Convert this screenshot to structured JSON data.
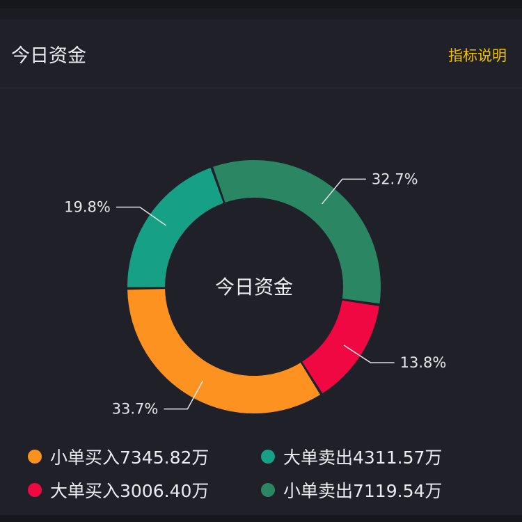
{
  "header": {
    "title": "今日资金",
    "link_label": "指标说明"
  },
  "chart_data": {
    "type": "pie",
    "donut": true,
    "center_label": "今日资金",
    "slices": [
      {
        "name": "小单卖出",
        "percent": 32.7,
        "label": "32.7%",
        "amount": "7119.54万",
        "color": "#2b8664"
      },
      {
        "name": "大单买入",
        "percent": 13.8,
        "label": "13.8%",
        "amount": "3006.40万",
        "color": "#ef0841"
      },
      {
        "name": "小单买入",
        "percent": 33.7,
        "label": "33.7%",
        "amount": "7345.82万",
        "color": "#fd9221"
      },
      {
        "name": "大单卖出",
        "percent": 19.8,
        "label": "19.8%",
        "amount": "4311.57万",
        "color": "#16a085"
      }
    ],
    "legend": [
      {
        "label": "小单买入7345.82万",
        "color": "#fd9221"
      },
      {
        "label": "大单卖出4311.57万",
        "color": "#16a085"
      },
      {
        "label": "大单买入3006.40万",
        "color": "#ef0841"
      },
      {
        "label": "小单卖出7119.54万",
        "color": "#2b8664"
      }
    ]
  }
}
